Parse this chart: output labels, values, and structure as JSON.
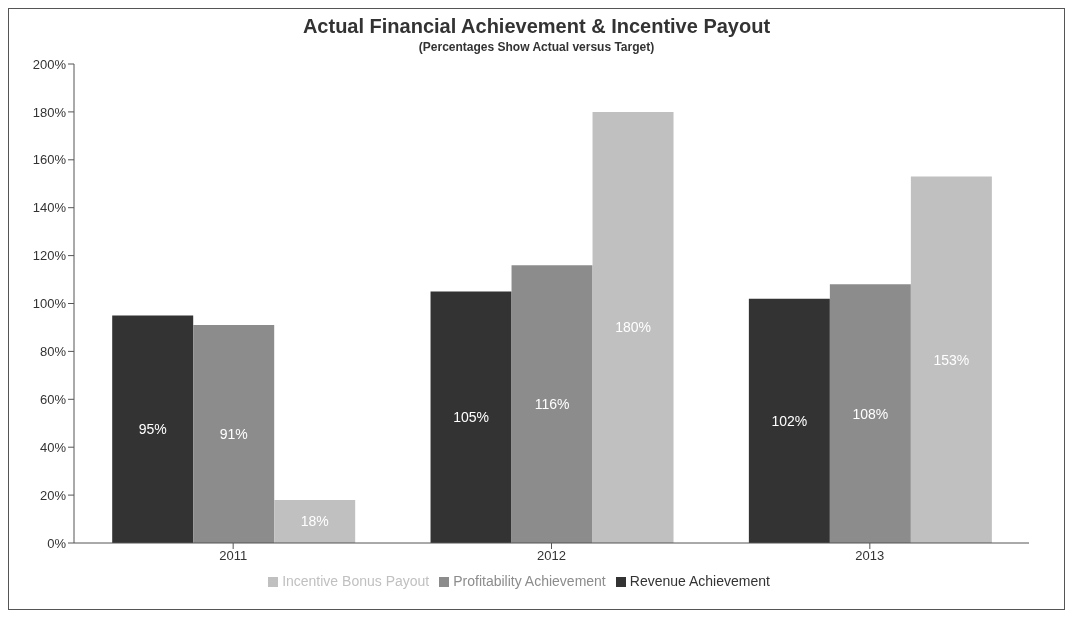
{
  "chart_data": {
    "type": "bar",
    "title": "Actual Financial Achievement & Incentive Payout",
    "subtitle": "(Percentages Show Actual versus Target)",
    "categories": [
      "2011",
      "2012",
      "2013"
    ],
    "series": [
      {
        "name": "Revenue Achievement",
        "color": "#333333",
        "values": [
          95,
          105,
          102
        ],
        "value_labels": [
          "95%",
          "105%",
          "102%"
        ]
      },
      {
        "name": "Profitability Achievement",
        "color": "#8c8c8c",
        "values": [
          91,
          116,
          108
        ],
        "value_labels": [
          "91%",
          "116%",
          "108%"
        ]
      },
      {
        "name": "Incentive Bonus Payout",
        "color": "#c0c0c0",
        "values": [
          18,
          180,
          153
        ],
        "value_labels": [
          "18%",
          "180%",
          "153%"
        ]
      }
    ],
    "ylim": [
      0,
      200
    ],
    "yticks": [
      {
        "value": 0,
        "label": "0%"
      },
      {
        "value": 20,
        "label": "20%"
      },
      {
        "value": 40,
        "label": "40%"
      },
      {
        "value": 60,
        "label": "60%"
      },
      {
        "value": 80,
        "label": "80%"
      },
      {
        "value": 100,
        "label": "100%"
      },
      {
        "value": 120,
        "label": "120%"
      },
      {
        "value": 140,
        "label": "140%"
      },
      {
        "value": 160,
        "label": "160%"
      },
      {
        "value": 180,
        "label": "180%"
      },
      {
        "value": 200,
        "label": "200%"
      }
    ],
    "grid": false,
    "legend": "bottom"
  }
}
